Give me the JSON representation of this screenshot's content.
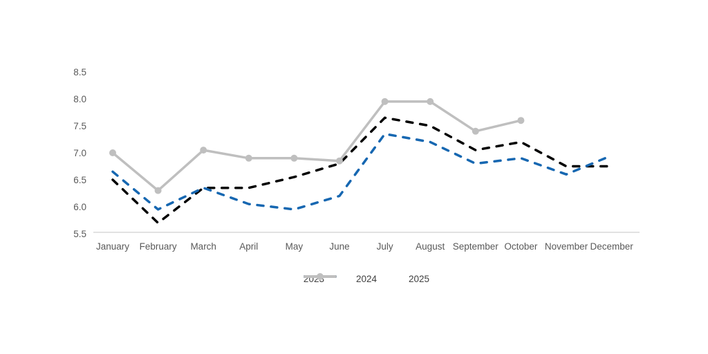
{
  "chart_data": {
    "type": "line",
    "title": "",
    "xlabel": "",
    "ylabel": "",
    "categories": [
      "January",
      "February",
      "March",
      "April",
      "May",
      "June",
      "July",
      "August",
      "September",
      "October",
      "November",
      "December"
    ],
    "series": [
      {
        "name": "2023",
        "color": "#000000",
        "style": "dashed",
        "values": [
          6.5,
          5.7,
          6.35,
          6.35,
          6.55,
          6.8,
          7.65,
          7.5,
          7.05,
          7.2,
          6.75,
          6.75
        ]
      },
      {
        "name": "2024",
        "color": "#1667B1",
        "style": "dashed",
        "values": [
          6.65,
          5.95,
          6.35,
          6.05,
          5.95,
          6.2,
          7.35,
          7.2,
          6.8,
          6.9,
          6.6,
          6.95
        ]
      },
      {
        "name": "2025",
        "color": "#BFBFBF",
        "style": "solid-markers",
        "values": [
          7.0,
          6.3,
          7.05,
          6.9,
          6.9,
          6.85,
          7.95,
          7.95,
          7.4,
          7.6,
          null,
          null
        ]
      }
    ],
    "ylim": [
      5.5,
      8.5
    ],
    "ytick_step": 0.5,
    "yticks": [
      "8.5",
      "8.0",
      "7.5",
      "7.0",
      "6.5",
      "6.0",
      "5.5"
    ],
    "grid": false,
    "legend_position": "bottom",
    "axis_line_color": "#D9D9D9",
    "tick_text_color": "#595959"
  }
}
